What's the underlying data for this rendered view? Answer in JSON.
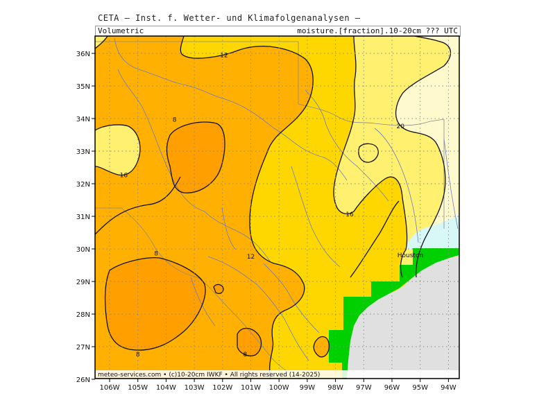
{
  "header": {
    "title": "CETA — Inst. f. Wetter- und Klimafolgenanalysen —",
    "left_label": "Volumetric",
    "right_label": "moisture.[fraction].10-20cm ??? UTC"
  },
  "footer": {
    "credit": "meteo-services.com • (c)10-20cm IWKF • All rights reserved (14-2025)"
  },
  "axes": {
    "lon_ticks": [
      "106W",
      "105W",
      "104W",
      "103W",
      "102W",
      "101W",
      "100W",
      "99W",
      "98W",
      "97W",
      "96W",
      "95W",
      "94W"
    ],
    "lat_ticks": [
      "36N",
      "35N",
      "34N",
      "33N",
      "32N",
      "31N",
      "30N",
      "29N",
      "28N",
      "27N",
      "26N"
    ]
  },
  "contour_labels": [
    {
      "text": "12",
      "lon": -101.95,
      "lat": 35.88
    },
    {
      "text": "8",
      "lon": -103.7,
      "lat": 33.9
    },
    {
      "text": "16",
      "lon": -105.5,
      "lat": 32.2
    },
    {
      "text": "20",
      "lon": -95.7,
      "lat": 33.7
    },
    {
      "text": "16",
      "lon": -97.5,
      "lat": 31.0
    },
    {
      "text": "12",
      "lon": -101.0,
      "lat": 29.7
    },
    {
      "text": "8",
      "lon": -104.35,
      "lat": 29.8
    },
    {
      "text": "8",
      "lon": -105.0,
      "lat": 26.7
    },
    {
      "text": "8",
      "lon": -101.2,
      "lat": 26.7
    }
  ],
  "place_labels": [
    {
      "text": "Houston",
      "lon": -95.35,
      "lat": 29.75
    }
  ],
  "legend_colors": {
    "lt8": "#ff9f00",
    "8to12": "#ffb000",
    "12to16": "#ffd700",
    "16to20": "#fff070",
    "gt20": "#fffacd",
    "water": "#d8f8f8",
    "sea": "#e0e0e0",
    "coast": "#00d000"
  }
}
